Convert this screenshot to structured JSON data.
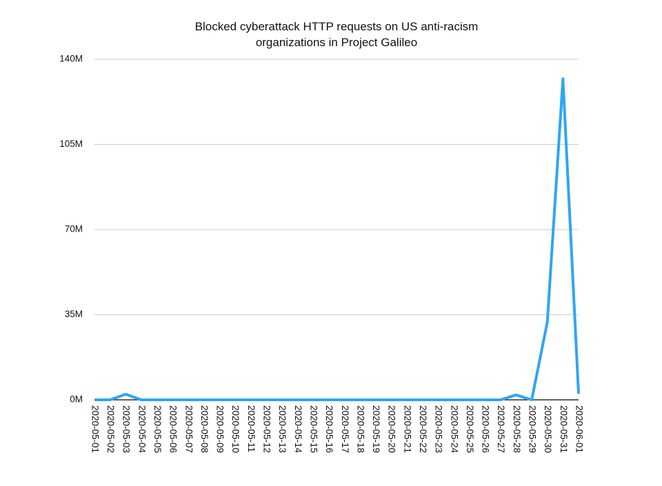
{
  "chart_data": {
    "type": "line",
    "title": "Blocked cyberattack HTTP requests on US anti-racism organizations in Project Galileo",
    "x": [
      "2020-05-01",
      "2020-05-02",
      "2020-05-03",
      "2020-05-04",
      "2020-05-05",
      "2020-05-06",
      "2020-05-07",
      "2020-05-08",
      "2020-05-09",
      "2020-05-10",
      "2020-05-11",
      "2020-05-12",
      "2020-05-13",
      "2020-05-14",
      "2020-05-15",
      "2020-05-16",
      "2020-05-17",
      "2020-05-18",
      "2020-05-19",
      "2020-05-20",
      "2020-05-21",
      "2020-05-22",
      "2020-05-23",
      "2020-05-24",
      "2020-05-25",
      "2020-05-26",
      "2020-05-27",
      "2020-05-28",
      "2020-05-29",
      "2020-05-30",
      "2020-05-31",
      "2020-06-01"
    ],
    "series": [
      {
        "color": "#2ea6f4",
        "values": [
          0,
          0,
          2300000,
          0,
          0,
          0,
          0,
          0,
          0,
          0,
          0,
          0,
          0,
          0,
          0,
          0,
          0,
          0,
          0,
          0,
          0,
          0,
          0,
          0,
          0,
          0,
          0,
          2000000,
          0,
          32000000,
          132000000,
          2500000
        ]
      }
    ],
    "ylim": [
      0,
      140000000
    ],
    "yticks": [
      {
        "value": 0,
        "label": "0M"
      },
      {
        "value": 35000000,
        "label": "35M"
      },
      {
        "value": 70000000,
        "label": "70M"
      },
      {
        "value": 105000000,
        "label": "105M"
      },
      {
        "value": 140000000,
        "label": "140M"
      }
    ],
    "grid": true
  }
}
